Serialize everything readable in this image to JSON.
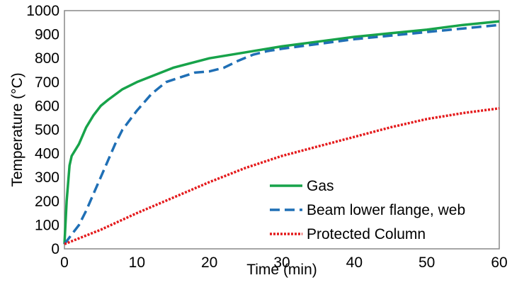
{
  "chart_data": {
    "type": "line",
    "title": "",
    "xlabel": "Time (min)",
    "ylabel": "Temperature (°C)",
    "xlim": [
      0,
      60
    ],
    "ylim": [
      0,
      1000
    ],
    "x_ticks": [
      0,
      10,
      20,
      30,
      40,
      50,
      60
    ],
    "y_ticks": [
      0,
      100,
      200,
      300,
      400,
      500,
      600,
      700,
      800,
      900,
      1000
    ],
    "x_tick_labels": [
      "0",
      "10",
      "20",
      "30",
      "40",
      "50",
      "60"
    ],
    "y_tick_labels": [
      "0",
      "100",
      "200",
      "300",
      "400",
      "500",
      "600",
      "700",
      "800",
      "900",
      "1000"
    ],
    "grid": false,
    "legend_position": "lower-right",
    "series": [
      {
        "name": "Gas",
        "color": "#17a34a",
        "style": "solid",
        "x": [
          0,
          0.3,
          0.7,
          1,
          2,
          3,
          4,
          5,
          6,
          8,
          10,
          15,
          20,
          25,
          30,
          35,
          40,
          45,
          50,
          55,
          60
        ],
        "y": [
          20,
          200,
          350,
          390,
          440,
          510,
          560,
          600,
          625,
          670,
          700,
          760,
          800,
          825,
          850,
          870,
          890,
          905,
          920,
          940,
          955
        ]
      },
      {
        "name": "Beam lower flange, web",
        "color": "#1f6fb5",
        "style": "dashed",
        "x": [
          0,
          1,
          2,
          3,
          4,
          5,
          6,
          7,
          8,
          10,
          12,
          14,
          16,
          18,
          20,
          22,
          24,
          26,
          28,
          30,
          35,
          40,
          45,
          50,
          55,
          60
        ],
        "y": [
          20,
          60,
          100,
          160,
          230,
          300,
          370,
          440,
          500,
          580,
          650,
          700,
          720,
          740,
          745,
          760,
          790,
          815,
          830,
          840,
          860,
          880,
          895,
          910,
          925,
          940
        ]
      },
      {
        "name": "Protected Column",
        "color": "#e41a1c",
        "style": "dotted",
        "x": [
          0,
          5,
          10,
          15,
          20,
          25,
          30,
          35,
          40,
          45,
          50,
          55,
          60
        ],
        "y": [
          20,
          80,
          150,
          215,
          280,
          340,
          390,
          430,
          470,
          510,
          545,
          570,
          590
        ]
      }
    ]
  }
}
